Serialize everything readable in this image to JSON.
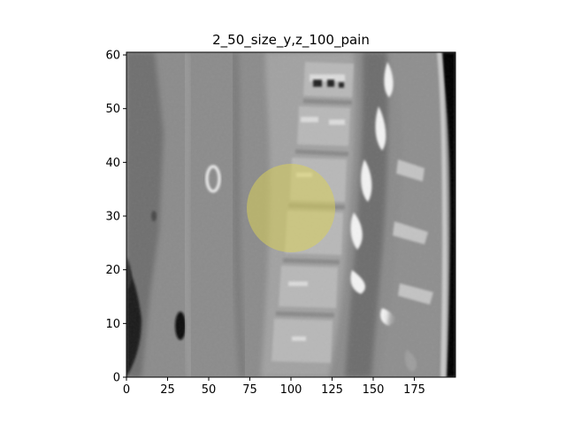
{
  "figure": {
    "title": "2_50_size_y,z_100_pain"
  },
  "image": {
    "description_kind": "grayscale-ct-sagittal-slice",
    "overlay_color": "#d9cf5a",
    "overlay_center": [
      100,
      33
    ],
    "overlay_radius": 8.5
  },
  "axes": {
    "x": {
      "ticks": [
        0,
        25,
        50,
        75,
        100,
        125,
        150,
        175
      ],
      "labels": [
        "0",
        "25",
        "50",
        "75",
        "100",
        "125",
        "150",
        "175"
      ],
      "range": [
        0,
        200
      ]
    },
    "y": {
      "ticks": [
        0,
        10,
        20,
        30,
        40,
        50,
        60
      ],
      "labels": [
        "0",
        "10",
        "20",
        "30",
        "40",
        "50",
        "60"
      ],
      "range": [
        0,
        60.5
      ]
    }
  }
}
